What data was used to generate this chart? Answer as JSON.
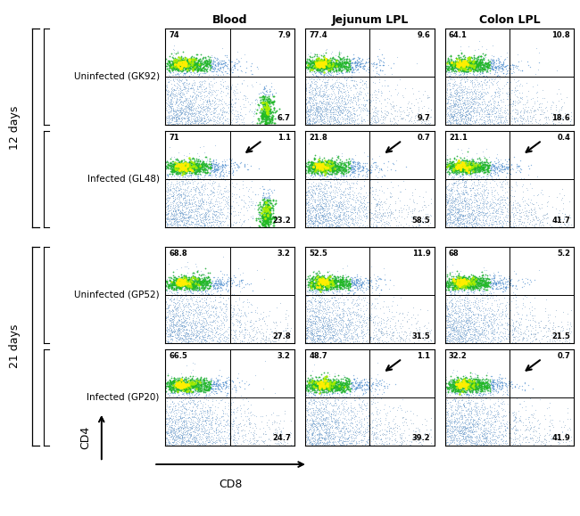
{
  "title": "",
  "col_headers": [
    "Blood",
    "Jejunum LPL",
    "Colon LPL"
  ],
  "row_groups": [
    {
      "group_label": "12 days",
      "rows": [
        {
          "row_label": "Uninfected (GK92)",
          "panels": [
            {
              "tl": "74",
              "tr": "7.9",
              "br": "6.7",
              "arrow": false,
              "has_lr_cluster": true
            },
            {
              "tl": "77.4",
              "tr": "9.6",
              "br": "9.7",
              "arrow": false,
              "has_lr_cluster": false
            },
            {
              "tl": "64.1",
              "tr": "10.8",
              "br": "18.6",
              "arrow": false,
              "has_lr_cluster": false
            }
          ]
        },
        {
          "row_label": "Infected (GL48)",
          "panels": [
            {
              "tl": "71",
              "tr": "1.1",
              "br": "23.2",
              "arrow": true,
              "has_lr_cluster": true
            },
            {
              "tl": "21.8",
              "tr": "0.7",
              "br": "58.5",
              "arrow": true,
              "has_lr_cluster": false
            },
            {
              "tl": "21.1",
              "tr": "0.4",
              "br": "41.7",
              "arrow": true,
              "has_lr_cluster": false
            }
          ]
        }
      ]
    },
    {
      "group_label": "21 days",
      "rows": [
        {
          "row_label": "Uninfected (GP52)",
          "panels": [
            {
              "tl": "68.8",
              "tr": "3.2",
              "br": "27.8",
              "arrow": false,
              "has_lr_cluster": false
            },
            {
              "tl": "52.5",
              "tr": "11.9",
              "br": "31.5",
              "arrow": false,
              "has_lr_cluster": false
            },
            {
              "tl": "68",
              "tr": "5.2",
              "br": "21.5",
              "arrow": false,
              "has_lr_cluster": false
            }
          ]
        },
        {
          "row_label": "Infected (GP20)",
          "panels": [
            {
              "tl": "66.5",
              "tr": "3.2",
              "br": "24.7",
              "arrow": false,
              "has_lr_cluster": false
            },
            {
              "tl": "48.7",
              "tr": "1.1",
              "br": "39.2",
              "arrow": true,
              "has_lr_cluster": false
            },
            {
              "tl": "32.2",
              "tr": "0.7",
              "br": "41.9",
              "arrow": true,
              "has_lr_cluster": false
            }
          ]
        }
      ]
    }
  ],
  "xlabel": "CD8",
  "ylabel": "CD4",
  "bg_color": "#ffffff",
  "figure_width": 6.5,
  "figure_height": 5.79
}
